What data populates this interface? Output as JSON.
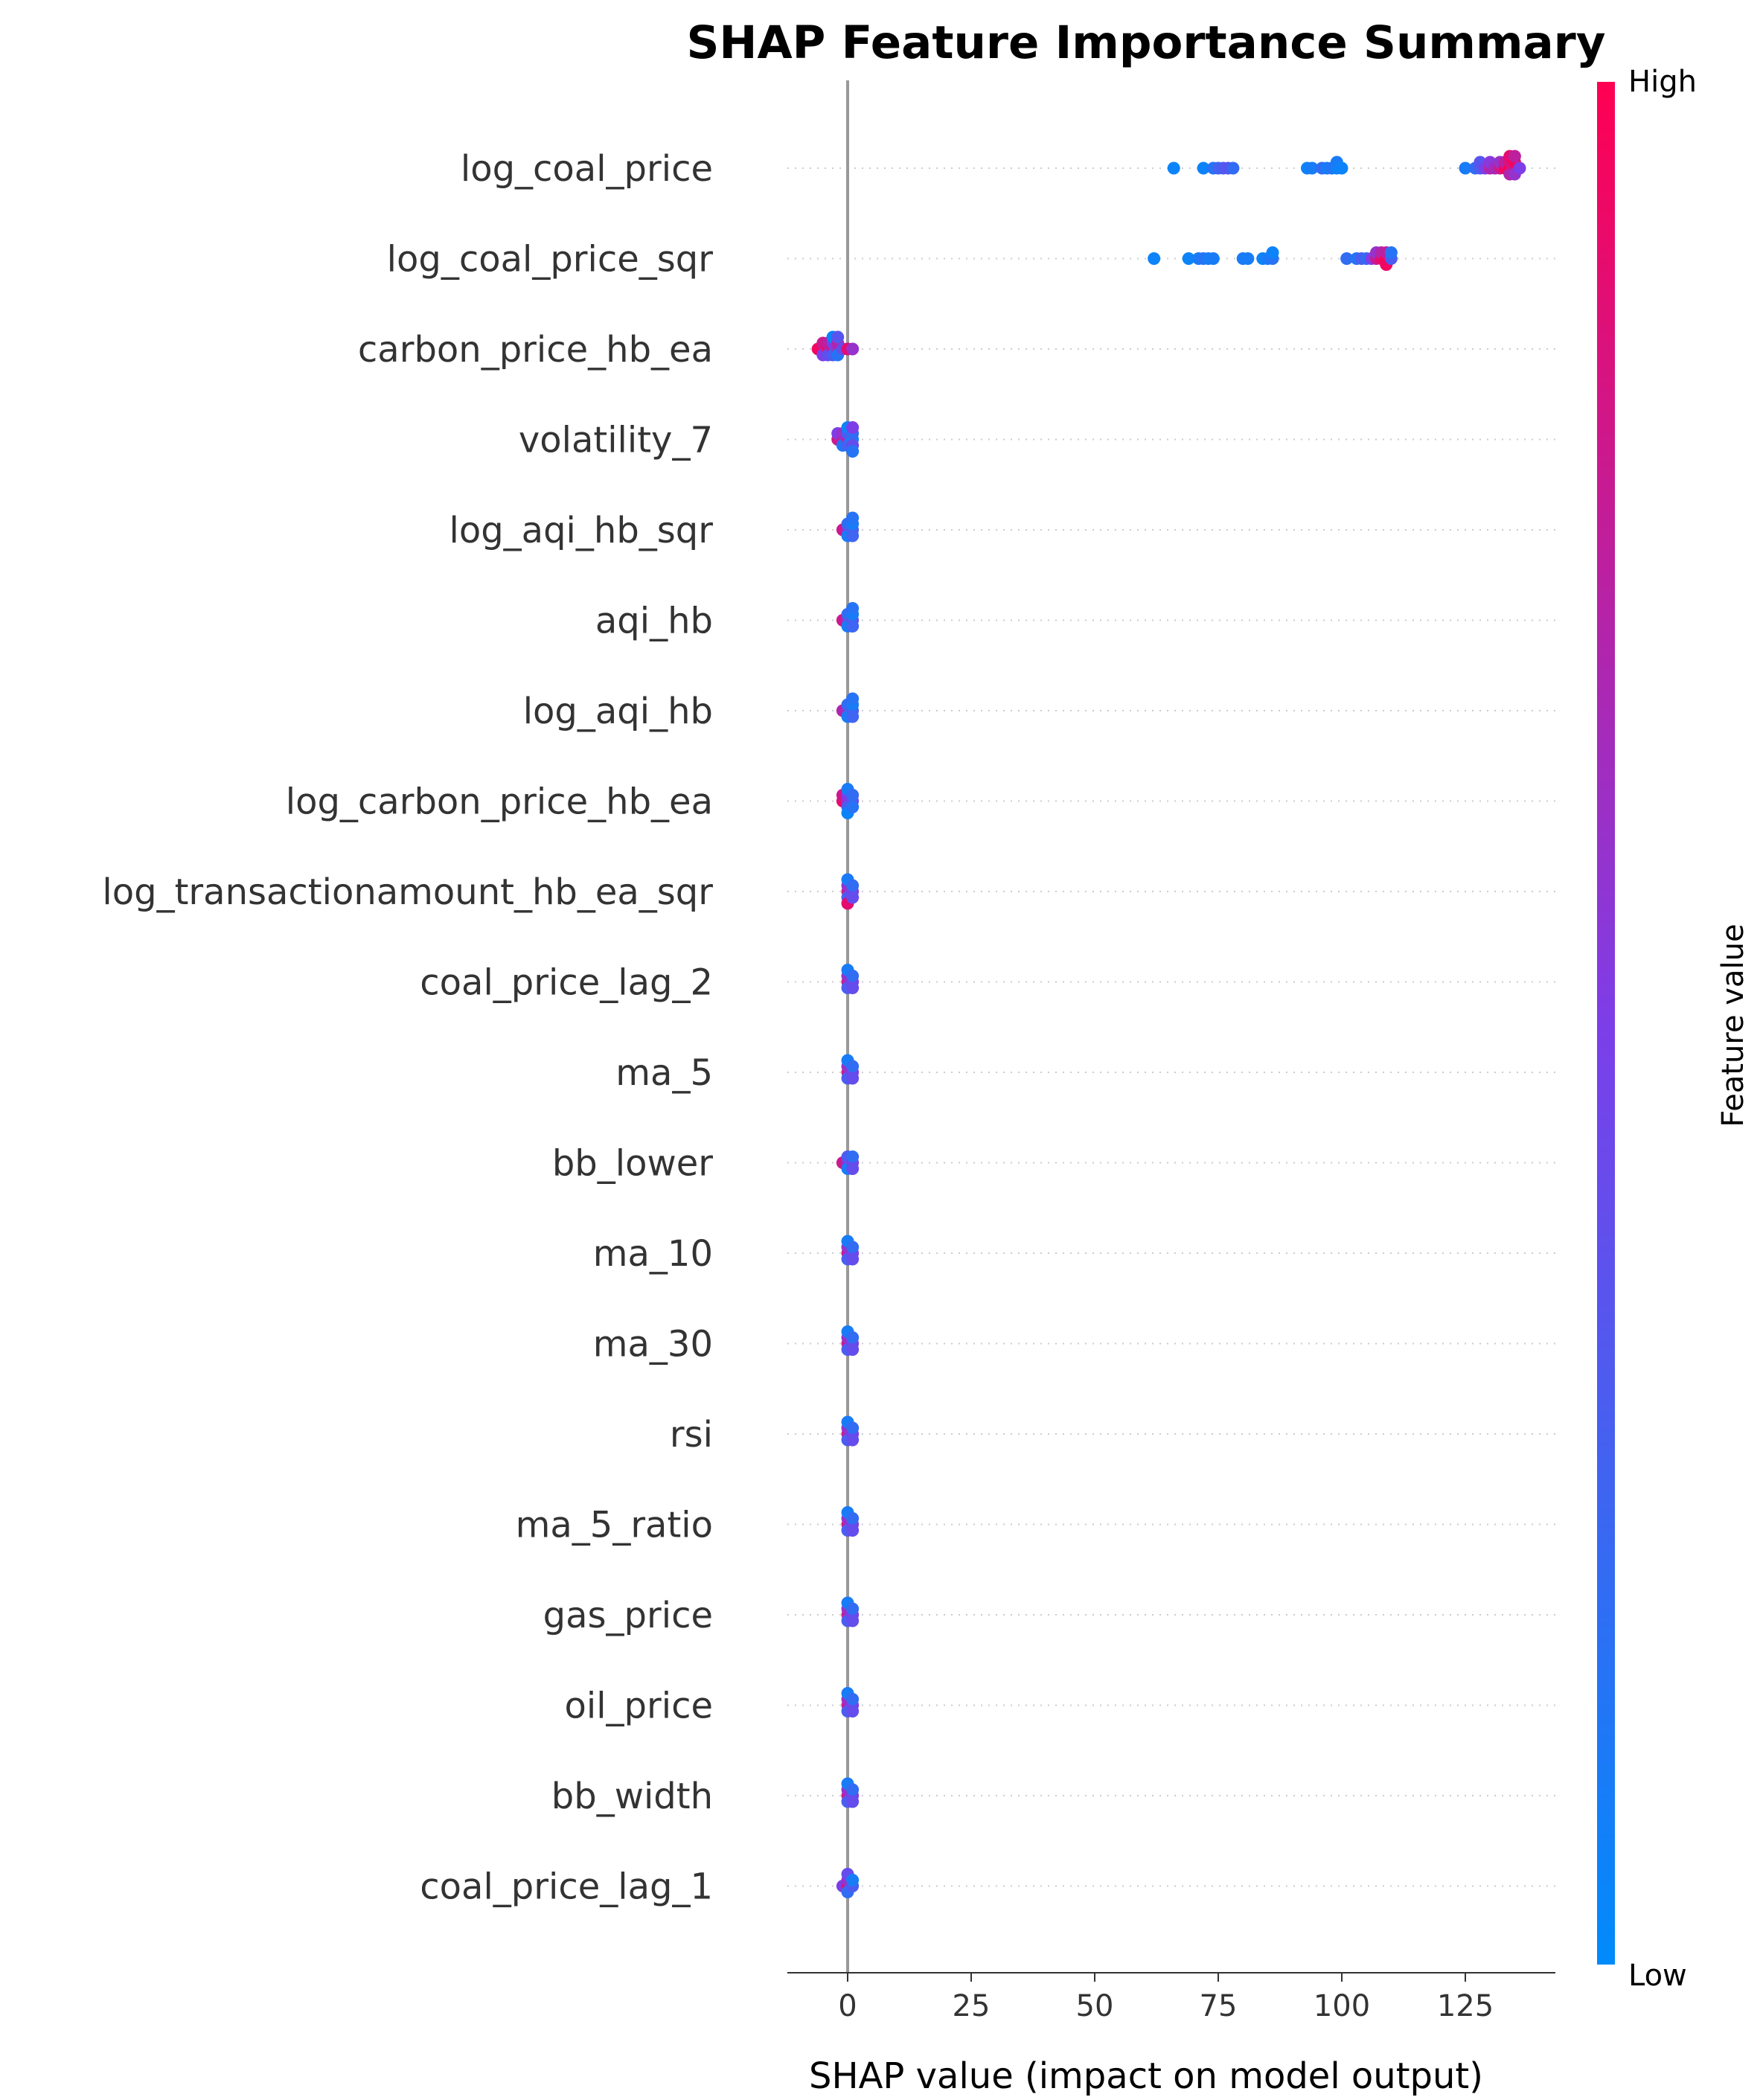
{
  "chart_data": {
    "type": "scatter",
    "title": "SHAP Feature Importance Summary",
    "xlabel": "SHAP value (impact on model output)",
    "ylabel": "",
    "xlim": [
      -12,
      143
    ],
    "xticks": [
      0,
      25,
      50,
      75,
      100,
      125
    ],
    "xtick_labels": [
      "0",
      "25",
      "50",
      "75",
      "100",
      "125"
    ],
    "grid": "dotted horizontal row guides",
    "colorbar": {
      "label": "Feature value",
      "high_label": "High",
      "low_label": "Low",
      "high_color": "#ff0052",
      "low_color": "#008bfb"
    },
    "zero_line_color": "#999999",
    "features": [
      {
        "name": "log_coal_price",
        "points": [
          [
            66,
            0.05
          ],
          [
            72,
            0.05
          ],
          [
            74,
            0.15
          ],
          [
            75,
            0.25
          ],
          [
            76,
            0.3
          ],
          [
            77,
            0.35
          ],
          [
            78,
            0.2
          ],
          [
            93,
            0.05
          ],
          [
            94,
            0.1
          ],
          [
            96,
            0.2
          ],
          [
            97,
            0.1
          ],
          [
            98,
            0.15
          ],
          [
            99,
            0.05
          ],
          [
            99,
            0.1
          ],
          [
            100,
            0.05
          ],
          [
            125,
            0.1
          ],
          [
            127,
            0.2
          ],
          [
            128,
            0.3
          ],
          [
            128,
            0.35
          ],
          [
            129,
            0.5
          ],
          [
            130,
            0.7
          ],
          [
            130,
            0.55
          ],
          [
            131,
            0.65
          ],
          [
            132,
            0.8
          ],
          [
            132,
            0.6
          ],
          [
            133,
            0.95
          ],
          [
            133,
            0.75
          ],
          [
            134,
            1.0
          ],
          [
            134,
            0.85
          ],
          [
            134,
            0.7
          ],
          [
            134,
            0.9
          ],
          [
            135,
            0.8
          ],
          [
            135,
            0.95
          ],
          [
            135,
            0.6
          ],
          [
            135,
            0.75
          ],
          [
            136,
            0.5
          ]
        ]
      },
      {
        "name": "log_coal_price_sqr",
        "points": [
          [
            62,
            0.05
          ],
          [
            69,
            0.05
          ],
          [
            71,
            0.1
          ],
          [
            72,
            0.15
          ],
          [
            73,
            0.1
          ],
          [
            74,
            0.1
          ],
          [
            80,
            0.1
          ],
          [
            81,
            0.1
          ],
          [
            84,
            0.05
          ],
          [
            85,
            0.1
          ],
          [
            86,
            0.15
          ],
          [
            86,
            0.05
          ],
          [
            101,
            0.2
          ],
          [
            103,
            0.15
          ],
          [
            104,
            0.3
          ],
          [
            105,
            0.2
          ],
          [
            106,
            0.5
          ],
          [
            107,
            0.8
          ],
          [
            107,
            0.6
          ],
          [
            108,
            0.9
          ],
          [
            108,
            0.7
          ],
          [
            109,
            1.0
          ],
          [
            109,
            0.75
          ],
          [
            109,
            0.95
          ],
          [
            110,
            0.3
          ],
          [
            110,
            0.15
          ]
        ]
      },
      {
        "name": "carbon_price_hb_ea",
        "points": [
          [
            -6,
            0.95
          ],
          [
            -5,
            0.9
          ],
          [
            -5,
            0.8
          ],
          [
            -4,
            0.9
          ],
          [
            -4,
            0.75
          ],
          [
            -3,
            0.8
          ],
          [
            -3,
            0.5
          ],
          [
            -3,
            0.3
          ],
          [
            -5,
            0.5
          ],
          [
            -4,
            0.4
          ],
          [
            -2,
            0.6
          ],
          [
            -2,
            0.7
          ],
          [
            -1,
            0.4
          ],
          [
            -2,
            0.15
          ],
          [
            -2,
            0.35
          ],
          [
            0,
            0.9
          ],
          [
            1,
            0.6
          ],
          [
            -3,
            0.05
          ]
        ]
      },
      {
        "name": "volatility_7",
        "points": [
          [
            -2,
            0.8
          ],
          [
            -1,
            0.75
          ],
          [
            -2,
            0.5
          ],
          [
            -1,
            0.6
          ],
          [
            0,
            0.7
          ],
          [
            0,
            0.3
          ],
          [
            1,
            0.1
          ],
          [
            1,
            0.2
          ],
          [
            1,
            0.4
          ],
          [
            1,
            0.5
          ],
          [
            0,
            0.25
          ],
          [
            1,
            0.15
          ],
          [
            0,
            0.05
          ],
          [
            -1,
            0.15
          ]
        ]
      },
      {
        "name": "log_aqi_hb_sqr",
        "points": [
          [
            -1,
            0.8
          ],
          [
            0,
            0.6
          ],
          [
            1,
            0.3
          ],
          [
            1,
            0.1
          ],
          [
            0,
            0.2
          ],
          [
            1,
            0.25
          ],
          [
            1,
            0.15
          ],
          [
            0,
            0.1
          ]
        ]
      },
      {
        "name": "aqi_hb",
        "points": [
          [
            -1,
            0.8
          ],
          [
            0,
            0.6
          ],
          [
            1,
            0.35
          ],
          [
            1,
            0.1
          ],
          [
            0,
            0.2
          ],
          [
            1,
            0.25
          ],
          [
            1,
            0.15
          ],
          [
            0,
            0.1
          ]
        ]
      },
      {
        "name": "log_aqi_hb",
        "points": [
          [
            -1,
            0.7
          ],
          [
            0,
            0.6
          ],
          [
            1,
            0.3
          ],
          [
            1,
            0.1
          ],
          [
            0,
            0.2
          ],
          [
            1,
            0.25
          ],
          [
            1,
            0.15
          ],
          [
            0,
            0.1
          ]
        ]
      },
      {
        "name": "log_carbon_price_hb_ea",
        "points": [
          [
            -1,
            0.9
          ],
          [
            -1,
            0.8
          ],
          [
            0,
            0.6
          ],
          [
            0,
            0.5
          ],
          [
            1,
            0.4
          ],
          [
            0,
            0.3
          ],
          [
            1,
            0.2
          ],
          [
            0,
            0.1
          ],
          [
            1,
            0.15
          ],
          [
            0,
            0.05
          ]
        ]
      },
      {
        "name": "log_transactionamount_hb_ea_sqr",
        "points": [
          [
            0,
            0.8
          ],
          [
            0,
            0.6
          ],
          [
            1,
            0.5
          ],
          [
            0,
            0.3
          ],
          [
            1,
            0.2
          ],
          [
            0,
            0.1
          ],
          [
            0,
            0.9
          ],
          [
            1,
            0.4
          ]
        ]
      },
      {
        "name": "coal_price_lag_2",
        "points": [
          [
            0,
            0.8
          ],
          [
            0,
            0.6
          ],
          [
            1,
            0.5
          ],
          [
            0,
            0.3
          ],
          [
            1,
            0.2
          ],
          [
            0,
            0.1
          ],
          [
            1,
            0.4
          ]
        ]
      },
      {
        "name": "ma_5",
        "points": [
          [
            0,
            0.8
          ],
          [
            0,
            0.6
          ],
          [
            1,
            0.5
          ],
          [
            0,
            0.3
          ],
          [
            1,
            0.2
          ],
          [
            0,
            0.1
          ],
          [
            1,
            0.4
          ]
        ]
      },
      {
        "name": "bb_lower",
        "points": [
          [
            -1,
            0.8
          ],
          [
            0,
            0.6
          ],
          [
            1,
            0.5
          ],
          [
            0,
            0.3
          ],
          [
            1,
            0.2
          ],
          [
            0,
            0.1
          ],
          [
            1,
            0.4
          ]
        ]
      },
      {
        "name": "ma_10",
        "points": [
          [
            0,
            0.8
          ],
          [
            0,
            0.6
          ],
          [
            1,
            0.5
          ],
          [
            0,
            0.3
          ],
          [
            1,
            0.2
          ],
          [
            0,
            0.1
          ],
          [
            1,
            0.4
          ]
        ]
      },
      {
        "name": "ma_30",
        "points": [
          [
            0,
            0.8
          ],
          [
            0,
            0.6
          ],
          [
            1,
            0.5
          ],
          [
            0,
            0.3
          ],
          [
            1,
            0.2
          ],
          [
            0,
            0.1
          ],
          [
            1,
            0.4
          ]
        ]
      },
      {
        "name": "rsi",
        "points": [
          [
            0,
            0.8
          ],
          [
            0,
            0.6
          ],
          [
            1,
            0.5
          ],
          [
            0,
            0.3
          ],
          [
            1,
            0.2
          ],
          [
            0,
            0.1
          ],
          [
            1,
            0.4
          ]
        ]
      },
      {
        "name": "ma_5_ratio",
        "points": [
          [
            0,
            0.8
          ],
          [
            0,
            0.6
          ],
          [
            1,
            0.5
          ],
          [
            0,
            0.3
          ],
          [
            1,
            0.2
          ],
          [
            0,
            0.1
          ],
          [
            1,
            0.4
          ]
        ]
      },
      {
        "name": "gas_price",
        "points": [
          [
            0,
            0.8
          ],
          [
            0,
            0.6
          ],
          [
            1,
            0.5
          ],
          [
            0,
            0.3
          ],
          [
            1,
            0.2
          ],
          [
            0,
            0.1
          ],
          [
            1,
            0.4
          ]
        ]
      },
      {
        "name": "oil_price",
        "points": [
          [
            0,
            0.8
          ],
          [
            0,
            0.6
          ],
          [
            1,
            0.5
          ],
          [
            0,
            0.3
          ],
          [
            1,
            0.2
          ],
          [
            0,
            0.1
          ],
          [
            1,
            0.4
          ]
        ]
      },
      {
        "name": "bb_width",
        "points": [
          [
            0,
            0.8
          ],
          [
            0,
            0.6
          ],
          [
            1,
            0.5
          ],
          [
            0,
            0.3
          ],
          [
            1,
            0.2
          ],
          [
            0,
            0.1
          ],
          [
            1,
            0.4
          ]
        ]
      },
      {
        "name": "coal_price_lag_1",
        "points": [
          [
            -1,
            0.5
          ],
          [
            0,
            0.8
          ],
          [
            0,
            0.6
          ],
          [
            1,
            0.3
          ],
          [
            0,
            0.2
          ],
          [
            1,
            0.1
          ],
          [
            0,
            0.4
          ]
        ]
      }
    ]
  }
}
